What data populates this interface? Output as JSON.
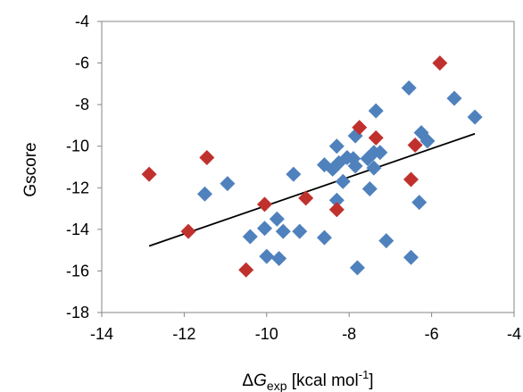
{
  "chart_data": {
    "type": "scatter",
    "title": "",
    "xlabel": {
      "prefix": "Δ",
      "italic": "G",
      "sub": "exp",
      "unit_pre": " [kcal mol",
      "sup": "-1",
      "unit_post": "]"
    },
    "ylabel": "Gscore",
    "xlim": [
      -14,
      -4
    ],
    "ylim": [
      -18,
      -4
    ],
    "x_ticks": [
      -14,
      -12,
      -10,
      -8,
      -6,
      -4
    ],
    "y_ticks": [
      -18,
      -16,
      -14,
      -12,
      -10,
      -8,
      -6,
      -4
    ],
    "grid": false,
    "legend": "none",
    "series": [
      {
        "color": "#4F81BD",
        "marker": "diamond",
        "points": [
          [
            -11.5,
            -12.3
          ],
          [
            -10.95,
            -11.8
          ],
          [
            -10.4,
            -14.35
          ],
          [
            -10.05,
            -13.95
          ],
          [
            -10.0,
            -15.3
          ],
          [
            -9.75,
            -13.5
          ],
          [
            -9.7,
            -15.4
          ],
          [
            -9.6,
            -14.1
          ],
          [
            -9.35,
            -11.35
          ],
          [
            -9.2,
            -14.1
          ],
          [
            -8.6,
            -14.4
          ],
          [
            -8.6,
            -10.9
          ],
          [
            -8.4,
            -11.1
          ],
          [
            -8.3,
            -12.6
          ],
          [
            -8.3,
            -10.0
          ],
          [
            -8.25,
            -10.8
          ],
          [
            -8.15,
            -11.7
          ],
          [
            -8.05,
            -10.55
          ],
          [
            -7.9,
            -10.6
          ],
          [
            -7.85,
            -9.5
          ],
          [
            -7.85,
            -10.95
          ],
          [
            -7.8,
            -15.85
          ],
          [
            -7.55,
            -10.6
          ],
          [
            -7.5,
            -12.05
          ],
          [
            -7.4,
            -11.05
          ],
          [
            -7.4,
            -10.3
          ],
          [
            -7.35,
            -8.3
          ],
          [
            -7.25,
            -10.3
          ],
          [
            -7.1,
            -14.55
          ],
          [
            -6.55,
            -7.2
          ],
          [
            -6.5,
            -15.35
          ],
          [
            -6.3,
            -12.7
          ],
          [
            -6.25,
            -9.35
          ],
          [
            -6.1,
            -9.75
          ],
          [
            -5.45,
            -7.7
          ],
          [
            -4.95,
            -8.6
          ]
        ]
      },
      {
        "color": "#C0312E",
        "marker": "diamond",
        "points": [
          [
            -12.85,
            -11.35
          ],
          [
            -11.9,
            -14.1
          ],
          [
            -11.45,
            -10.55
          ],
          [
            -10.5,
            -15.95
          ],
          [
            -10.05,
            -12.8
          ],
          [
            -9.05,
            -12.5
          ],
          [
            -8.3,
            -13.05
          ],
          [
            -7.75,
            -9.1
          ],
          [
            -7.35,
            -9.6
          ],
          [
            -6.5,
            -11.6
          ],
          [
            -6.4,
            -9.95
          ],
          [
            -5.8,
            -6.0
          ]
        ]
      }
    ],
    "trendline": {
      "x": [
        -12.85,
        -4.95
      ],
      "y": [
        -14.8,
        -9.4
      ],
      "color": "#000000"
    }
  }
}
